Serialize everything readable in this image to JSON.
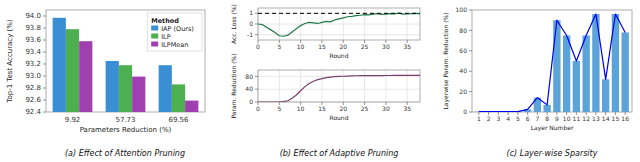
{
  "chart_data": [
    {
      "type": "bar",
      "title": "(a) Effect of Attention Pruning",
      "xlabel": "Parameters Reduction (%)",
      "ylabel": "Top-1 Test Accuracy (%)",
      "categories": [
        "9.92",
        "57.73",
        "69.56"
      ],
      "series": [
        {
          "name": "IAP (Ours)",
          "color": "#3A8FD4",
          "values": [
            93.97,
            93.25,
            93.18
          ]
        },
        {
          "name": "ILP",
          "color": "#4CAF50",
          "values": [
            93.78,
            93.18,
            92.86
          ]
        },
        {
          "name": "ILPMean",
          "color": "#A040B0",
          "values": [
            93.58,
            92.99,
            92.59
          ]
        }
      ],
      "ylim": [
        92.4,
        94.1
      ],
      "yticks": [
        92.4,
        92.6,
        92.8,
        {
          "value": 93,
          "label": "93.0"
        },
        93.2,
        93.4,
        93.6,
        93.8,
        {
          "value": 94,
          "label": "94.0"
        }
      ],
      "legend": "upper right",
      "legend_title": "Method"
    },
    {
      "type": "line",
      "title": "(b) Effect of Adaptive Pruning",
      "xlabel": "Round",
      "ylabel": "Acc. Loss (%)",
      "x": [
        0,
        1,
        2,
        3,
        4,
        5,
        6,
        7,
        8,
        9,
        10,
        11,
        12,
        13,
        14,
        15,
        16,
        17,
        18,
        19,
        20,
        21,
        22,
        23,
        24,
        25,
        26,
        27,
        28,
        29,
        30,
        31,
        32,
        33,
        34,
        35,
        36,
        37,
        38
      ],
      "series": [
        {
          "color": "#1E7A4A",
          "values": [
            0.0,
            -0.05,
            -0.3,
            -0.55,
            -0.8,
            -1.1,
            -1.15,
            -1.05,
            -0.75,
            -0.45,
            -0.15,
            0.05,
            0.15,
            0.1,
            0.05,
            0.15,
            0.25,
            0.2,
            0.38,
            0.48,
            0.58,
            0.68,
            0.72,
            0.78,
            0.82,
            0.88,
            0.85,
            0.92,
            0.97,
            0.9,
            0.93,
            0.97,
            0.95,
            1.02,
            0.93,
            0.95,
            0.98,
            1.0,
            0.98
          ]
        }
      ],
      "xlim": [
        0,
        38
      ],
      "xticks": [
        0,
        5,
        10,
        15,
        20,
        25,
        30,
        35
      ],
      "ylim": [
        -1.5,
        1.5
      ],
      "yticks": [
        -1,
        0,
        1
      ],
      "grid": true,
      "reference_line": {
        "value": 1.0,
        "color": "#000000",
        "line_style": "dashed"
      }
    },
    {
      "type": "line",
      "xlabel": "Round",
      "ylabel": "Param. Reduction (%)",
      "x": [
        0,
        1,
        2,
        3,
        4,
        5,
        6,
        7,
        8,
        9,
        10,
        11,
        12,
        13,
        14,
        15,
        16,
        17,
        18,
        19,
        20,
        21,
        22,
        23,
        24,
        25,
        26,
        27,
        28,
        29,
        30,
        31,
        32,
        33,
        34,
        35,
        36,
        37,
        38
      ],
      "series": [
        {
          "color": "#7B3F6E",
          "values": [
            0,
            0,
            0,
            0,
            0,
            0,
            1,
            4,
            12,
            22,
            35,
            48,
            58,
            65,
            70,
            73,
            76,
            78,
            79,
            80,
            80.5,
            81,
            81.5,
            82,
            82.2,
            82.3,
            82.4,
            82.5,
            82.6,
            82.7,
            82.8,
            82.85,
            82.9,
            82.95,
            83.0,
            83.05,
            83.1,
            83.2,
            83.3
          ]
        }
      ],
      "xlim": [
        0,
        38
      ],
      "xticks": [
        0,
        5,
        10,
        15,
        20,
        25,
        30,
        35
      ],
      "ylim": [
        0,
        100
      ],
      "yticks": [
        0,
        40,
        80
      ],
      "grid": true
    },
    {
      "type": "bar",
      "title": "(c) Layer-wise Sparsity",
      "xlabel": "Layer Number",
      "ylabel": "Layerwise Param. Reduction (%)",
      "x": [
        1,
        2,
        3,
        4,
        5,
        6,
        7,
        8,
        9,
        10,
        11,
        12,
        13,
        14,
        15,
        16
      ],
      "series": [
        {
          "type": "bar",
          "color": "#5BA3D9",
          "values": [
            0.3,
            0.3,
            0.3,
            0.3,
            0.3,
            2.5,
            14.0,
            7.0,
            90.0,
            75.0,
            50.0,
            75.0,
            96.0,
            32.0,
            96.0,
            78.0
          ]
        },
        {
          "type": "line",
          "color": "#0000EE",
          "values": [
            0.3,
            0.3,
            0.3,
            0.3,
            0.3,
            2.5,
            14.0,
            7.0,
            90.0,
            75.0,
            50.0,
            75.0,
            96.0,
            32.0,
            96.0,
            78.0
          ]
        }
      ],
      "xlim": [
        0.3,
        16.7
      ],
      "xticks": [
        1,
        2,
        3,
        4,
        5,
        6,
        7,
        8,
        9,
        10,
        11,
        12,
        13,
        14,
        15,
        16
      ],
      "ylim": [
        0,
        100
      ],
      "yticks": [
        0,
        20,
        40,
        60,
        80,
        100
      ]
    }
  ]
}
